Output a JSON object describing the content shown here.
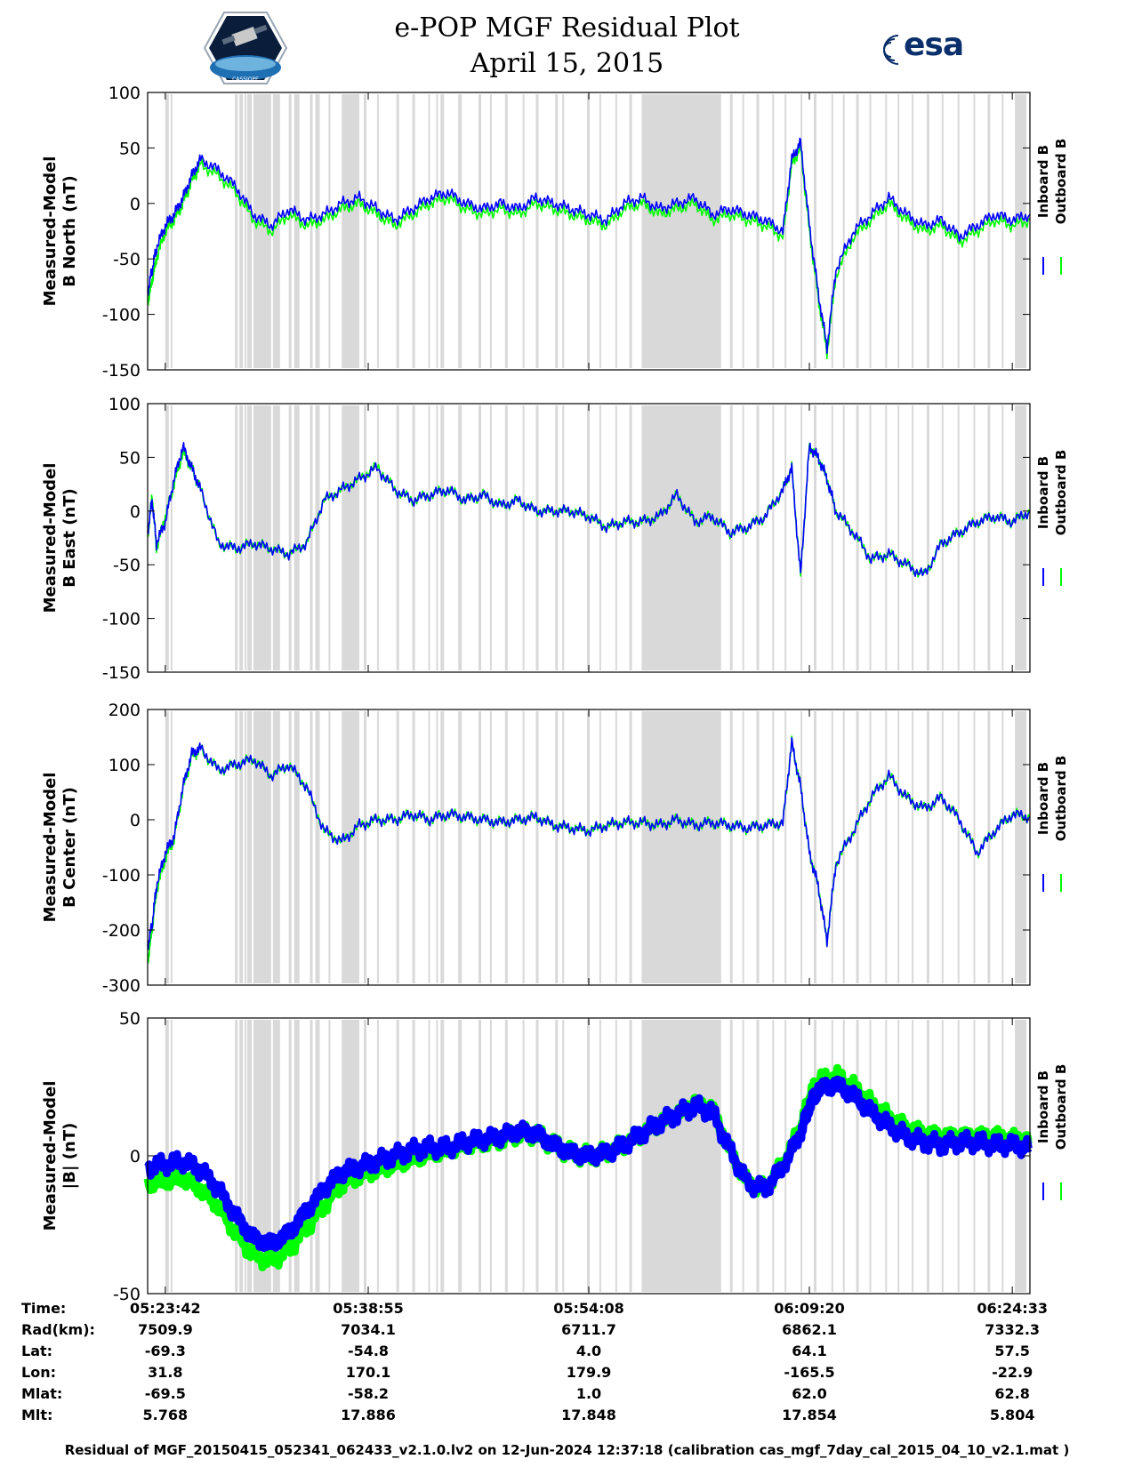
{
  "title": {
    "line1": "e-POP MGF Residual Plot",
    "line2": "April 15, 2015"
  },
  "logos": {
    "left": {
      "text": "CASSIOPE",
      "icon": "satellite-mission-badge-icon"
    },
    "right": {
      "text": "esa",
      "icon": "esa-logo-icon",
      "color": "#0b2f6b"
    }
  },
  "colors": {
    "inboard": "#0000ff",
    "outboard": "#00ff00",
    "shading": "#d9d9d9"
  },
  "legend": {
    "inboard": "Inboard B",
    "outboard": "Outboard B"
  },
  "shading_intervals_fraction": [
    [
      0.02,
      0.024
    ],
    [
      0.026,
      0.028
    ],
    [
      0.099,
      0.102
    ],
    [
      0.104,
      0.108
    ],
    [
      0.11,
      0.112
    ],
    [
      0.113,
      0.118
    ],
    [
      0.12,
      0.14
    ],
    [
      0.142,
      0.15
    ],
    [
      0.16,
      0.163
    ],
    [
      0.166,
      0.172
    ],
    [
      0.184,
      0.187
    ],
    [
      0.19,
      0.195
    ],
    [
      0.205,
      0.207
    ],
    [
      0.22,
      0.24
    ],
    [
      0.245,
      0.248
    ],
    [
      0.26,
      0.262
    ],
    [
      0.282,
      0.285
    ],
    [
      0.3,
      0.303
    ],
    [
      0.318,
      0.32
    ],
    [
      0.327,
      0.329
    ],
    [
      0.332,
      0.336
    ],
    [
      0.352,
      0.356
    ],
    [
      0.375,
      0.378
    ],
    [
      0.388,
      0.39
    ],
    [
      0.405,
      0.408
    ],
    [
      0.425,
      0.427
    ],
    [
      0.44,
      0.443
    ],
    [
      0.462,
      0.465
    ],
    [
      0.47,
      0.472
    ],
    [
      0.498,
      0.501
    ],
    [
      0.512,
      0.514
    ],
    [
      0.53,
      0.532
    ],
    [
      0.546,
      0.549
    ],
    [
      0.56,
      0.65
    ],
    [
      0.66,
      0.663
    ],
    [
      0.674,
      0.676
    ],
    [
      0.69,
      0.693
    ],
    [
      0.708,
      0.71
    ],
    [
      0.722,
      0.724
    ],
    [
      0.74,
      0.742
    ],
    [
      0.755,
      0.758
    ],
    [
      0.775,
      0.777
    ],
    [
      0.788,
      0.79
    ],
    [
      0.803,
      0.806
    ],
    [
      0.818,
      0.82
    ],
    [
      0.836,
      0.838
    ],
    [
      0.85,
      0.852
    ],
    [
      0.866,
      0.868
    ],
    [
      0.883,
      0.886
    ],
    [
      0.9,
      0.902
    ],
    [
      0.918,
      0.92
    ],
    [
      0.936,
      0.938
    ],
    [
      0.952,
      0.955
    ],
    [
      0.968,
      0.97
    ],
    [
      0.983,
      0.996
    ]
  ],
  "chart_data": [
    {
      "type": "line",
      "id": "north",
      "ylabel_line1": "Measured-Model",
      "ylabel_line2": "B North (nT)",
      "ylim": [
        -150,
        100
      ],
      "yticks": [
        100,
        50,
        0,
        -50,
        -100,
        -150
      ],
      "x_fraction": [
        0,
        0.005,
        0.01,
        0.02,
        0.03,
        0.04,
        0.05,
        0.06,
        0.08,
        0.1,
        0.12,
        0.14,
        0.16,
        0.18,
        0.2,
        0.22,
        0.24,
        0.26,
        0.28,
        0.3,
        0.32,
        0.34,
        0.36,
        0.38,
        0.4,
        0.42,
        0.44,
        0.46,
        0.48,
        0.5,
        0.52,
        0.54,
        0.56,
        0.58,
        0.6,
        0.62,
        0.64,
        0.66,
        0.68,
        0.7,
        0.72,
        0.73,
        0.74,
        0.75,
        0.76,
        0.77,
        0.78,
        0.8,
        0.82,
        0.84,
        0.86,
        0.88,
        0.9,
        0.92,
        0.94,
        0.96,
        0.98,
        1.0
      ],
      "series": [
        {
          "name": "Inboard B",
          "values": [
            -80,
            -60,
            -40,
            -20,
            -10,
            5,
            25,
            40,
            30,
            15,
            -10,
            -20,
            -5,
            -15,
            -10,
            0,
            5,
            -5,
            -15,
            -5,
            5,
            10,
            0,
            -5,
            0,
            -5,
            5,
            0,
            -5,
            -10,
            -15,
            0,
            5,
            -5,
            0,
            5,
            -10,
            -5,
            -10,
            -15,
            -25,
            40,
            55,
            -20,
            -80,
            -130,
            -60,
            -25,
            -10,
            5,
            -10,
            -20,
            -15,
            -30,
            -20,
            -10,
            -15,
            -10
          ]
        },
        {
          "name": "Outboard B",
          "values": [
            -90,
            -70,
            -50,
            -25,
            -15,
            0,
            20,
            35,
            25,
            10,
            -15,
            -25,
            -10,
            -20,
            -15,
            -5,
            0,
            -10,
            -20,
            -10,
            0,
            5,
            -5,
            -10,
            -5,
            -10,
            0,
            -5,
            -10,
            -15,
            -20,
            -5,
            0,
            -10,
            -5,
            0,
            -15,
            -10,
            -15,
            -20,
            -30,
            35,
            50,
            -25,
            -85,
            -135,
            -65,
            -30,
            -15,
            0,
            -15,
            -25,
            -20,
            -35,
            -25,
            -15,
            -20,
            -15
          ]
        }
      ]
    },
    {
      "type": "line",
      "id": "east",
      "ylabel_line1": "Measured-Model",
      "ylabel_line2": "B East (nT)",
      "ylim": [
        -150,
        100
      ],
      "yticks": [
        100,
        50,
        0,
        -50,
        -100,
        -150
      ],
      "x_fraction": [
        0,
        0.005,
        0.01,
        0.02,
        0.03,
        0.04,
        0.05,
        0.06,
        0.08,
        0.1,
        0.12,
        0.14,
        0.16,
        0.18,
        0.2,
        0.22,
        0.24,
        0.26,
        0.28,
        0.3,
        0.32,
        0.34,
        0.36,
        0.38,
        0.4,
        0.42,
        0.44,
        0.46,
        0.48,
        0.5,
        0.52,
        0.54,
        0.56,
        0.58,
        0.6,
        0.62,
        0.64,
        0.66,
        0.68,
        0.7,
        0.72,
        0.73,
        0.74,
        0.75,
        0.76,
        0.77,
        0.78,
        0.8,
        0.82,
        0.84,
        0.86,
        0.88,
        0.9,
        0.92,
        0.94,
        0.96,
        0.98,
        1.0
      ],
      "series": [
        {
          "name": "Inboard B",
          "values": [
            -20,
            10,
            -30,
            -10,
            30,
            60,
            40,
            20,
            -30,
            -35,
            -30,
            -35,
            -40,
            -30,
            10,
            20,
            30,
            40,
            20,
            10,
            15,
            20,
            10,
            15,
            5,
            10,
            0,
            0,
            0,
            -5,
            -15,
            -10,
            -10,
            -5,
            15,
            -10,
            -5,
            -20,
            -15,
            -5,
            20,
            40,
            -60,
            60,
            50,
            30,
            0,
            -20,
            -45,
            -40,
            -50,
            -60,
            -30,
            -20,
            -10,
            -5,
            -10,
            0
          ]
        },
        {
          "name": "Outboard B",
          "values": [
            -25,
            15,
            -35,
            -5,
            25,
            55,
            40,
            20,
            -30,
            -35,
            -30,
            -35,
            -40,
            -30,
            10,
            20,
            30,
            42,
            20,
            10,
            15,
            20,
            10,
            15,
            5,
            10,
            0,
            0,
            0,
            -5,
            -15,
            -10,
            -10,
            -5,
            15,
            -10,
            -5,
            -20,
            -15,
            -5,
            20,
            40,
            -60,
            60,
            50,
            30,
            0,
            -20,
            -45,
            -40,
            -50,
            -60,
            -30,
            -20,
            -10,
            -5,
            -10,
            0
          ]
        }
      ]
    },
    {
      "type": "line",
      "id": "center",
      "ylabel_line1": "Measured-Model",
      "ylabel_line2": "B Center (nT)",
      "ylim": [
        -300,
        200
      ],
      "yticks": [
        200,
        100,
        0,
        -100,
        -200,
        -300
      ],
      "x_fraction": [
        0,
        0.005,
        0.01,
        0.02,
        0.03,
        0.04,
        0.05,
        0.06,
        0.08,
        0.1,
        0.12,
        0.14,
        0.16,
        0.18,
        0.2,
        0.22,
        0.24,
        0.26,
        0.28,
        0.3,
        0.32,
        0.34,
        0.36,
        0.38,
        0.4,
        0.42,
        0.44,
        0.46,
        0.48,
        0.5,
        0.52,
        0.54,
        0.56,
        0.58,
        0.6,
        0.62,
        0.64,
        0.66,
        0.68,
        0.7,
        0.72,
        0.73,
        0.74,
        0.75,
        0.76,
        0.77,
        0.78,
        0.8,
        0.82,
        0.84,
        0.86,
        0.88,
        0.9,
        0.92,
        0.94,
        0.96,
        0.98,
        1.0
      ],
      "series": [
        {
          "name": "Inboard B",
          "values": [
            -230,
            -190,
            -120,
            -60,
            -30,
            60,
            120,
            130,
            90,
            100,
            110,
            80,
            100,
            60,
            -20,
            -40,
            -10,
            0,
            0,
            10,
            0,
            10,
            5,
            0,
            -5,
            0,
            5,
            -10,
            -15,
            -20,
            -10,
            -5,
            -5,
            -10,
            0,
            -10,
            -5,
            -10,
            -15,
            -10,
            -5,
            140,
            60,
            -60,
            -120,
            -220,
            -80,
            -20,
            40,
            80,
            40,
            20,
            40,
            0,
            -60,
            -20,
            10,
            5
          ]
        },
        {
          "name": "Outboard B",
          "values": [
            -260,
            -200,
            -130,
            -70,
            -35,
            55,
            115,
            128,
            90,
            100,
            110,
            80,
            100,
            60,
            -20,
            -40,
            -10,
            0,
            0,
            10,
            0,
            10,
            5,
            0,
            -5,
            0,
            5,
            -10,
            -15,
            -20,
            -10,
            -5,
            -5,
            -10,
            0,
            -10,
            -5,
            -10,
            -15,
            -10,
            -5,
            140,
            60,
            -60,
            -120,
            -220,
            -80,
            -20,
            40,
            80,
            40,
            20,
            40,
            0,
            -60,
            -20,
            10,
            5
          ]
        }
      ]
    },
    {
      "type": "line",
      "id": "magnitude",
      "ylabel_line1": "Measured-Model",
      "ylabel_line2": "|B| (nT)",
      "ylim": [
        -50,
        50
      ],
      "yticks": [
        50,
        0,
        -50
      ],
      "x_fraction": [
        0,
        0.02,
        0.04,
        0.06,
        0.08,
        0.1,
        0.12,
        0.14,
        0.16,
        0.18,
        0.2,
        0.22,
        0.24,
        0.26,
        0.28,
        0.3,
        0.32,
        0.34,
        0.36,
        0.38,
        0.4,
        0.42,
        0.44,
        0.46,
        0.48,
        0.5,
        0.52,
        0.54,
        0.56,
        0.58,
        0.6,
        0.62,
        0.64,
        0.66,
        0.68,
        0.7,
        0.72,
        0.74,
        0.75,
        0.76,
        0.78,
        0.8,
        0.82,
        0.84,
        0.86,
        0.88,
        0.9,
        0.92,
        0.94,
        0.96,
        0.98,
        1.0
      ],
      "series": [
        {
          "name": "Inboard B",
          "values": [
            -4,
            -3,
            -2,
            -5,
            -12,
            -22,
            -30,
            -32,
            -28,
            -20,
            -12,
            -6,
            -4,
            -2,
            0,
            2,
            3,
            3,
            5,
            6,
            7,
            9,
            8,
            4,
            1,
            0,
            1,
            4,
            8,
            12,
            15,
            18,
            16,
            2,
            -10,
            -12,
            -4,
            8,
            18,
            24,
            26,
            22,
            16,
            11,
            7,
            5,
            4,
            5,
            5,
            4,
            4,
            3
          ]
        },
        {
          "name": "Outboard B",
          "values": [
            -10,
            -9,
            -8,
            -12,
            -18,
            -28,
            -36,
            -38,
            -34,
            -26,
            -18,
            -10,
            -7,
            -5,
            -3,
            -1,
            1,
            2,
            4,
            5,
            6,
            8,
            8,
            4,
            1,
            0,
            1,
            4,
            8,
            12,
            15,
            19,
            17,
            2,
            -10,
            -12,
            -3,
            10,
            21,
            27,
            29,
            25,
            19,
            14,
            10,
            8,
            7,
            7,
            7,
            7,
            6,
            6
          ]
        }
      ]
    }
  ],
  "info": {
    "labels": [
      "Time:",
      "Rad(km):",
      "Lat:",
      "Lon:",
      "Mlat:",
      "Mlt:"
    ],
    "columns": [
      [
        "05:23:42",
        "7509.9",
        "-69.3",
        "31.8",
        "-69.5",
        "5.768"
      ],
      [
        "05:38:55",
        "7034.1",
        "-54.8",
        "170.1",
        "-58.2",
        "17.886"
      ],
      [
        "05:54:08",
        "6711.7",
        "4.0",
        "179.9",
        "1.0",
        "17.848"
      ],
      [
        "06:09:20",
        "6862.1",
        "64.1",
        "-165.5",
        "62.0",
        "17.854"
      ],
      [
        "06:24:33",
        "7332.3",
        "57.5",
        "-22.9",
        "62.8",
        "5.804"
      ]
    ]
  },
  "footer": "Residual of MGF_20150415_052341_062433_v2.1.0.lv2 on 12-Jun-2024 12:37:18 (calibration cas_mgf_7day_cal_2015_04_10_v2.1.mat )"
}
